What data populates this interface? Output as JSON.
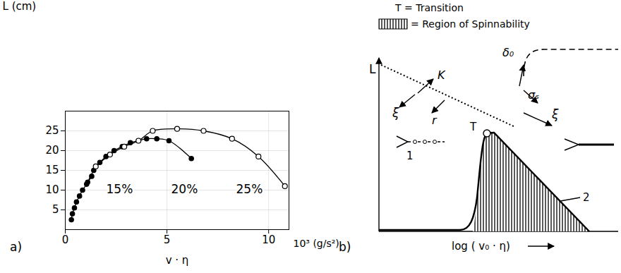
{
  "chart_data": [
    {
      "type": "line",
      "panel_label": "a)",
      "x_label": "v · η",
      "x_unit_label": "10³ (g/s²)",
      "y_label": "L (cm)",
      "xlim": [
        0,
        11
      ],
      "ylim": [
        0,
        30
      ],
      "xticks": [
        0,
        5,
        10
      ],
      "yticks": [
        5,
        10,
        15,
        20,
        25
      ],
      "grid": true,
      "series": [
        {
          "name": "15%",
          "color": "#000000",
          "marker": "filled",
          "line_style": "solid",
          "x": [
            0.3,
            0.35,
            0.45,
            0.55,
            0.7,
            0.85,
            1.05,
            1.3
          ],
          "values": [
            2.5,
            4,
            5.5,
            7,
            8.5,
            10,
            11.5,
            13.5
          ]
        },
        {
          "name": "20%",
          "color": "#000000",
          "marker": "filled",
          "line_style": "solid",
          "x": [
            1.1,
            1.4,
            1.7,
            2.0,
            2.4,
            2.8,
            3.2,
            3.6,
            4.0,
            4.5,
            5.1,
            6.2
          ],
          "values": [
            12,
            15,
            17,
            18.5,
            20,
            21,
            22,
            22.5,
            23,
            23,
            22.5,
            18
          ]
        },
        {
          "name": "25%",
          "color": "#000000",
          "marker": "open",
          "line_style": "solid",
          "x": [
            1.5,
            2.2,
            2.9,
            3.6,
            4.3,
            5.5,
            6.8,
            8.2,
            9.5,
            10.8
          ],
          "values": [
            16,
            19,
            21,
            22.5,
            25,
            25.5,
            25,
            23,
            18.5,
            11
          ]
        }
      ]
    },
    {
      "type": "schematic",
      "panel_label": "b)",
      "x_label": "log ( v₀ · η)",
      "y_label": "L",
      "key": [
        "T = Transition",
        "= Region of Spinnability"
      ],
      "annotations": [
        "K",
        "ξ",
        "r",
        "δ₀",
        "σₛ",
        "ξ",
        "T",
        "1",
        "2"
      ]
    }
  ]
}
